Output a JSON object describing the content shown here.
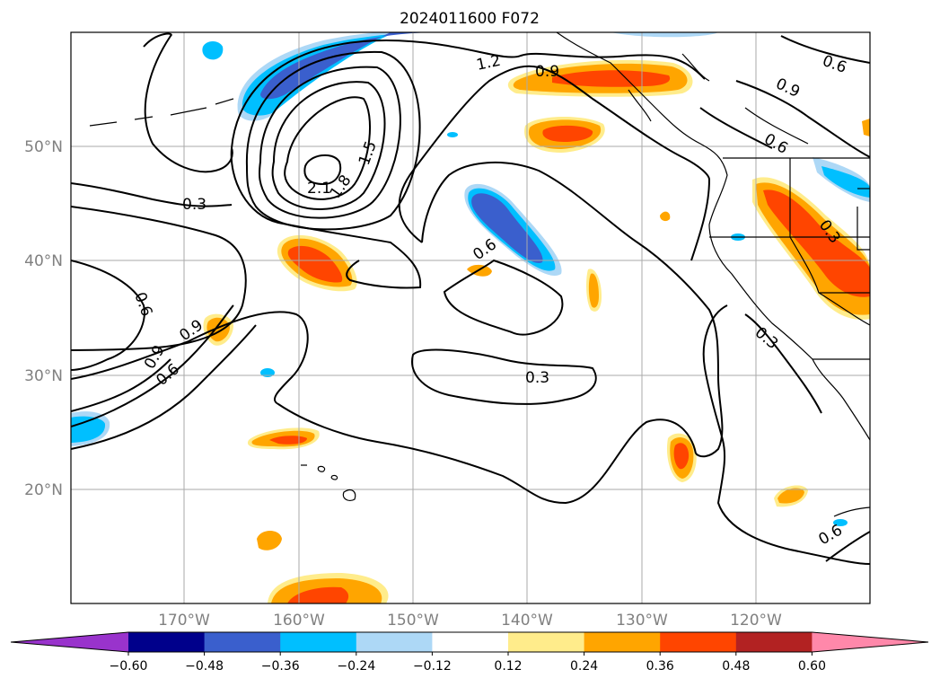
{
  "title": "2024011600 F072",
  "map": {
    "lon_range": [
      -180,
      -110
    ],
    "lat_range": [
      10,
      60
    ],
    "gridlines": true,
    "lat_labels": [
      "50°N",
      "40°N",
      "30°N",
      "20°N"
    ],
    "lon_labels": [
      "170°W",
      "160°W",
      "150°W",
      "140°W",
      "130°W",
      "120°W"
    ]
  },
  "colorbar": {
    "colors": [
      "#9933cc",
      "#00008b",
      "#3a5fcd",
      "#00bfff",
      "#add8f6",
      "#ffffff",
      "#ffec8b",
      "#ffa500",
      "#ff4500",
      "#b22222",
      "#ff88aa"
    ],
    "tick_labels": [
      "−0.60",
      "−0.48",
      "−0.36",
      "−0.24",
      "−0.12",
      "0.12",
      "0.24",
      "0.36",
      "0.48",
      "0.60"
    ],
    "extend": "both"
  },
  "contour_labels": [
    "2.1",
    "1.8",
    "1.5",
    "1.2",
    "0.9",
    "0.6",
    "0.3",
    "0.6",
    "0.9",
    "0.6",
    "0.9",
    "0.6",
    "0.3",
    "0.6",
    "0.9",
    "0.6",
    "0.3",
    "0.3"
  ]
}
